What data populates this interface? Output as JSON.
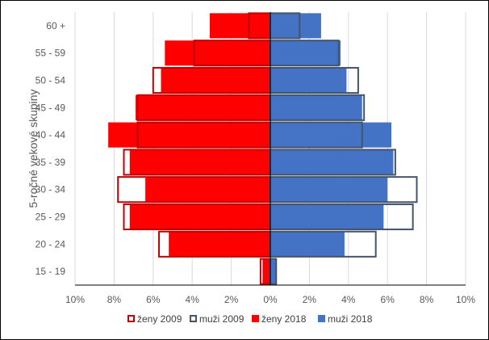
{
  "chart_data": {
    "type": "bar",
    "orientation": "horizontal",
    "subtype": "population-pyramid",
    "ylabel": "5-ročné vekové skupiny",
    "categories": [
      "15 - 19",
      "20 - 24",
      "25 - 29",
      "30 - 34",
      "35 - 39",
      "40 - 44",
      "45 - 49",
      "50 - 54",
      "55 - 59",
      "60 +"
    ],
    "x_ticks": [
      "10%",
      "8%",
      "6%",
      "4%",
      "2%",
      "0%",
      "2%",
      "4%",
      "6%",
      "8%",
      "10%"
    ],
    "xlim": [
      -10,
      10
    ],
    "grid": "vertical",
    "legend_position": "bottom",
    "series": [
      {
        "name": "ženy 2009",
        "style": "outline",
        "side": "left",
        "color": "#C00000",
        "values": [
          0.5,
          5.7,
          7.5,
          7.8,
          7.5,
          6.8,
          6.8,
          6.0,
          3.9,
          1.1
        ]
      },
      {
        "name": "muži 2009",
        "style": "outline",
        "side": "right",
        "color": "#44546A",
        "values": [
          0.3,
          5.4,
          7.3,
          7.5,
          6.4,
          4.7,
          4.8,
          4.5,
          3.5,
          1.5
        ]
      },
      {
        "name": "ženy 2018",
        "style": "filled",
        "side": "left",
        "color": "#FF0000",
        "values": [
          0.4,
          5.2,
          7.2,
          6.4,
          7.2,
          8.3,
          6.9,
          5.6,
          5.4,
          3.1
        ]
      },
      {
        "name": "muži 2018",
        "style": "filled",
        "side": "right",
        "color": "#4472C4",
        "values": [
          0.3,
          3.8,
          5.8,
          6.0,
          6.3,
          6.2,
          4.7,
          3.9,
          3.6,
          2.6
        ]
      }
    ]
  }
}
